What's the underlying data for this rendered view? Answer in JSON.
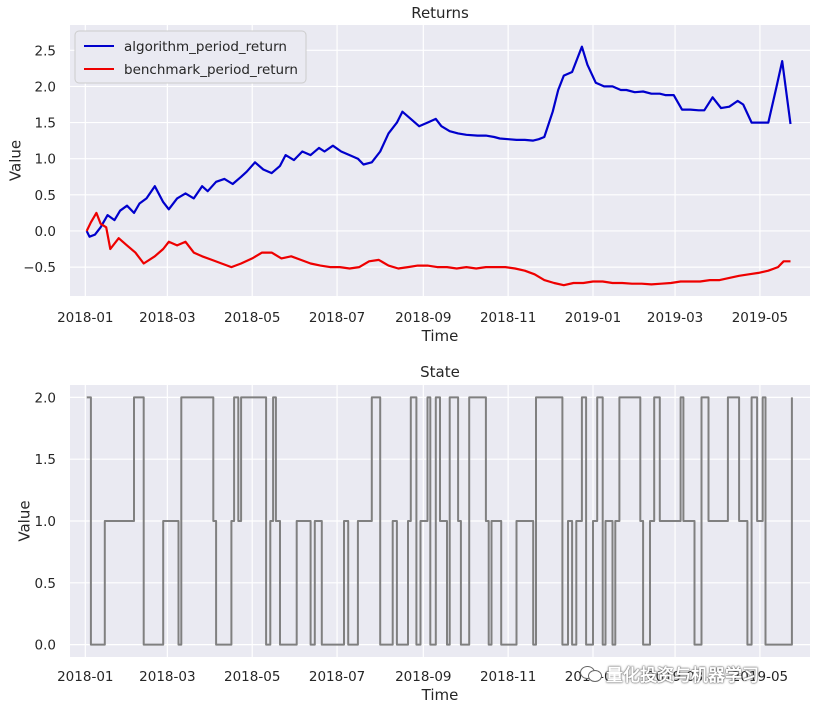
{
  "chart_data": [
    {
      "type": "line",
      "title": "Returns",
      "xlabel": "Time",
      "ylabel": "Value",
      "x_range": [
        "2017-12-21",
        "2019-06-06"
      ],
      "ylim": [
        -0.9,
        2.85
      ],
      "x_ticks": [
        "2018-01",
        "2018-03",
        "2018-05",
        "2018-07",
        "2018-09",
        "2018-11",
        "2019-01",
        "2019-03",
        "2019-05"
      ],
      "y_ticks": [
        -0.5,
        0.0,
        0.5,
        1.0,
        1.5,
        2.0,
        2.5
      ],
      "y_tick_labels": [
        "−0.5",
        "0.0",
        "0.5",
        "1.0",
        "1.5",
        "2.0",
        "2.5"
      ],
      "grid": true,
      "legend": "top-left",
      "series": [
        {
          "name": "algorithm_period_return",
          "color": "#0000cc",
          "x": [
            "2018-01-02",
            "2018-01-04",
            "2018-01-08",
            "2018-01-12",
            "2018-01-17",
            "2018-01-22",
            "2018-01-26",
            "2018-01-31",
            "2018-02-05",
            "2018-02-09",
            "2018-02-14",
            "2018-02-20",
            "2018-02-26",
            "2018-03-02",
            "2018-03-08",
            "2018-03-14",
            "2018-03-20",
            "2018-03-26",
            "2018-03-30",
            "2018-04-05",
            "2018-04-11",
            "2018-04-17",
            "2018-04-23",
            "2018-04-27",
            "2018-05-03",
            "2018-05-09",
            "2018-05-15",
            "2018-05-21",
            "2018-05-25",
            "2018-05-31",
            "2018-06-06",
            "2018-06-12",
            "2018-06-18",
            "2018-06-22",
            "2018-06-28",
            "2018-07-04",
            "2018-07-10",
            "2018-07-16",
            "2018-07-20",
            "2018-07-26",
            "2018-08-01",
            "2018-08-07",
            "2018-08-13",
            "2018-08-17",
            "2018-08-23",
            "2018-08-29",
            "2018-09-04",
            "2018-09-10",
            "2018-09-14",
            "2018-09-20",
            "2018-09-26",
            "2018-10-02",
            "2018-10-10",
            "2018-10-16",
            "2018-10-22",
            "2018-10-26",
            "2018-11-01",
            "2018-11-07",
            "2018-11-13",
            "2018-11-19",
            "2018-11-23",
            "2018-11-27",
            "2018-12-03",
            "2018-12-07",
            "2018-12-11",
            "2018-12-17",
            "2018-12-20",
            "2018-12-24",
            "2018-12-28",
            "2019-01-03",
            "2019-01-09",
            "2019-01-15",
            "2019-01-21",
            "2019-01-25",
            "2019-01-31",
            "2019-02-06",
            "2019-02-12",
            "2019-02-18",
            "2019-02-22",
            "2019-02-28",
            "2019-03-06",
            "2019-03-12",
            "2019-03-18",
            "2019-03-22",
            "2019-03-28",
            "2019-04-03",
            "2019-04-09",
            "2019-04-15",
            "2019-04-19",
            "2019-04-25",
            "2019-05-01",
            "2019-05-07",
            "2019-05-13",
            "2019-05-17",
            "2019-05-23"
          ],
          "y": [
            0.0,
            -0.08,
            -0.05,
            0.05,
            0.22,
            0.15,
            0.28,
            0.35,
            0.25,
            0.38,
            0.45,
            0.62,
            0.4,
            0.3,
            0.45,
            0.52,
            0.45,
            0.62,
            0.55,
            0.68,
            0.72,
            0.65,
            0.75,
            0.82,
            0.95,
            0.85,
            0.8,
            0.9,
            1.05,
            0.98,
            1.1,
            1.05,
            1.15,
            1.1,
            1.18,
            1.1,
            1.05,
            1.0,
            0.92,
            0.95,
            1.1,
            1.35,
            1.5,
            1.65,
            1.55,
            1.45,
            1.5,
            1.55,
            1.45,
            1.38,
            1.35,
            1.33,
            1.32,
            1.32,
            1.3,
            1.28,
            1.27,
            1.26,
            1.26,
            1.25,
            1.27,
            1.3,
            1.65,
            1.95,
            2.15,
            2.2,
            2.35,
            2.55,
            2.3,
            2.05,
            2.0,
            2.0,
            1.95,
            1.95,
            1.92,
            1.93,
            1.9,
            1.9,
            1.88,
            1.88,
            1.68,
            1.68,
            1.67,
            1.67,
            1.85,
            1.7,
            1.72,
            1.8,
            1.75,
            1.5,
            1.5,
            1.5,
            2.0,
            2.35,
            1.48
          ]
        },
        {
          "name": "benchmark_period_return",
          "color": "#ee0000",
          "x": [
            "2018-01-02",
            "2018-01-05",
            "2018-01-09",
            "2018-01-12",
            "2018-01-16",
            "2018-01-19",
            "2018-01-25",
            "2018-01-31",
            "2018-02-06",
            "2018-02-12",
            "2018-02-20",
            "2018-02-26",
            "2018-03-02",
            "2018-03-08",
            "2018-03-14",
            "2018-03-20",
            "2018-03-26",
            "2018-04-02",
            "2018-04-09",
            "2018-04-16",
            "2018-04-23",
            "2018-05-01",
            "2018-05-08",
            "2018-05-15",
            "2018-05-22",
            "2018-05-29",
            "2018-06-05",
            "2018-06-12",
            "2018-06-19",
            "2018-06-26",
            "2018-07-03",
            "2018-07-10",
            "2018-07-17",
            "2018-07-24",
            "2018-07-31",
            "2018-08-07",
            "2018-08-14",
            "2018-08-21",
            "2018-08-28",
            "2018-09-04",
            "2018-09-11",
            "2018-09-18",
            "2018-09-25",
            "2018-10-02",
            "2018-10-09",
            "2018-10-16",
            "2018-10-23",
            "2018-10-30",
            "2018-11-06",
            "2018-11-13",
            "2018-11-20",
            "2018-11-27",
            "2018-12-04",
            "2018-12-11",
            "2018-12-18",
            "2018-12-25",
            "2019-01-01",
            "2019-01-08",
            "2019-01-15",
            "2019-01-22",
            "2019-01-29",
            "2019-02-05",
            "2019-02-12",
            "2019-02-19",
            "2019-02-26",
            "2019-03-05",
            "2019-03-12",
            "2019-03-19",
            "2019-03-26",
            "2019-04-02",
            "2019-04-09",
            "2019-04-16",
            "2019-04-23",
            "2019-04-30",
            "2019-05-07",
            "2019-05-14",
            "2019-05-18",
            "2019-05-23"
          ],
          "y": [
            0.0,
            0.12,
            0.25,
            0.1,
            0.05,
            -0.25,
            -0.1,
            -0.2,
            -0.3,
            -0.45,
            -0.35,
            -0.25,
            -0.15,
            -0.2,
            -0.15,
            -0.3,
            -0.35,
            -0.4,
            -0.45,
            -0.5,
            -0.45,
            -0.38,
            -0.3,
            -0.3,
            -0.38,
            -0.35,
            -0.4,
            -0.45,
            -0.48,
            -0.5,
            -0.5,
            -0.52,
            -0.5,
            -0.42,
            -0.4,
            -0.48,
            -0.52,
            -0.5,
            -0.48,
            -0.48,
            -0.5,
            -0.5,
            -0.52,
            -0.5,
            -0.52,
            -0.5,
            -0.5,
            -0.5,
            -0.52,
            -0.55,
            -0.6,
            -0.68,
            -0.72,
            -0.75,
            -0.72,
            -0.72,
            -0.7,
            -0.7,
            -0.72,
            -0.72,
            -0.73,
            -0.73,
            -0.74,
            -0.73,
            -0.72,
            -0.7,
            -0.7,
            -0.7,
            -0.68,
            -0.68,
            -0.65,
            -0.62,
            -0.6,
            -0.58,
            -0.55,
            -0.5,
            -0.42,
            -0.42
          ]
        }
      ]
    },
    {
      "type": "line",
      "title": "State",
      "xlabel": "Time",
      "ylabel": "Value",
      "x_range": [
        "2017-12-21",
        "2019-06-06"
      ],
      "ylim": [
        -0.1,
        2.1
      ],
      "x_ticks": [
        "2018-01",
        "2018-03",
        "2018-05",
        "2018-07",
        "2018-09",
        "2018-11",
        "2019-01",
        "2019-03",
        "2019-05"
      ],
      "y_ticks": [
        0.0,
        0.5,
        1.0,
        1.5,
        2.0
      ],
      "y_tick_labels": [
        "0.0",
        "0.5",
        "1.0",
        "1.5",
        "2.0"
      ],
      "grid": true,
      "series": [
        {
          "color": "#808080",
          "step": true,
          "x": [
            "2018-01-02",
            "2018-01-05",
            "2018-01-12",
            "2018-01-15",
            "2018-02-05",
            "2018-02-07",
            "2018-02-12",
            "2018-02-22",
            "2018-02-26",
            "2018-03-05",
            "2018-03-09",
            "2018-03-11",
            "2018-03-30",
            "2018-04-03",
            "2018-04-05",
            "2018-04-16",
            "2018-04-18",
            "2018-04-21",
            "2018-04-23",
            "2018-05-11",
            "2018-05-14",
            "2018-05-16",
            "2018-05-18",
            "2018-05-21",
            "2018-05-29",
            "2018-06-02",
            "2018-06-12",
            "2018-06-15",
            "2018-06-20",
            "2018-07-01",
            "2018-07-06",
            "2018-07-09",
            "2018-07-16",
            "2018-07-26",
            "2018-08-01",
            "2018-08-10",
            "2018-08-13",
            "2018-08-21",
            "2018-08-23",
            "2018-08-27",
            "2018-08-30",
            "2018-09-04",
            "2018-09-06",
            "2018-09-10",
            "2018-09-13",
            "2018-09-18",
            "2018-09-20",
            "2018-09-26",
            "2018-09-28",
            "2018-10-04",
            "2018-10-16",
            "2018-10-18",
            "2018-10-20",
            "2018-10-27",
            "2018-11-07",
            "2018-11-19",
            "2018-11-21",
            "2018-12-07",
            "2018-12-10",
            "2018-12-14",
            "2018-12-17",
            "2018-12-20",
            "2018-12-24",
            "2018-12-27",
            "2019-01-01",
            "2019-01-04",
            "2019-01-08",
            "2019-01-10",
            "2019-01-15",
            "2019-01-17",
            "2019-01-20",
            "2019-01-23",
            "2019-02-04",
            "2019-02-06",
            "2019-02-11",
            "2019-02-14",
            "2019-02-18",
            "2019-03-05",
            "2019-03-07",
            "2019-03-15",
            "2019-03-20",
            "2019-03-25",
            "2019-04-08",
            "2019-04-11",
            "2019-04-16",
            "2019-04-22",
            "2019-04-25",
            "2019-04-29",
            "2019-05-03",
            "2019-05-05",
            "2019-05-24"
          ],
          "y": [
            2,
            0,
            0,
            1,
            2,
            2,
            0,
            0,
            1,
            1,
            0,
            2,
            2,
            1,
            0,
            1,
            2,
            1,
            2,
            0,
            1,
            2,
            1,
            0,
            0,
            1,
            0,
            1,
            0,
            0,
            1,
            0,
            1,
            2,
            0,
            1,
            0,
            1,
            2,
            0,
            1,
            2,
            0,
            2,
            1,
            0,
            2,
            1,
            0,
            2,
            1,
            0,
            1,
            0,
            1,
            0,
            2,
            2,
            0,
            1,
            0,
            1,
            2,
            0,
            1,
            2,
            0,
            1,
            0,
            1,
            2,
            2,
            1,
            0,
            1,
            2,
            1,
            2,
            1,
            0,
            2,
            1,
            2,
            2,
            1,
            0,
            2,
            1,
            2,
            0,
            2
          ]
        }
      ]
    }
  ],
  "watermark": {
    "icon": "wechat-icon",
    "text": "量化投资与机器学习"
  }
}
